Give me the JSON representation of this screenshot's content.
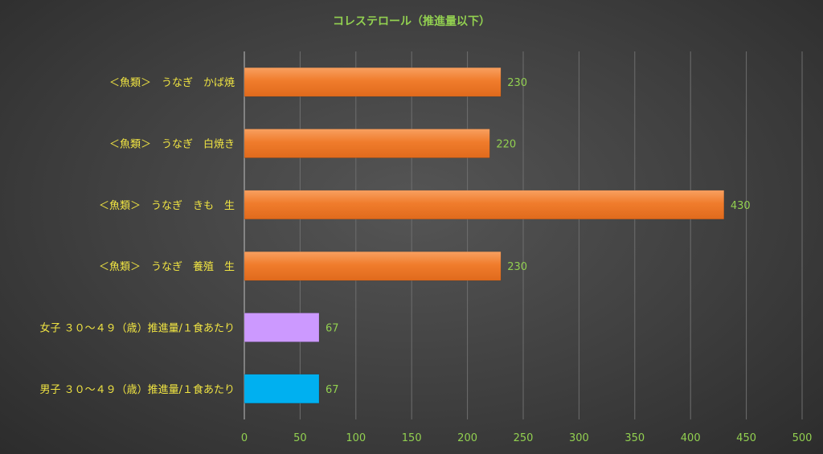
{
  "chart_data": {
    "type": "bar",
    "orientation": "horizontal",
    "title": "コレステロール（推進量以下）",
    "xlabel": "",
    "ylabel": "",
    "categories": [
      "＜魚類＞　うなぎ　かば焼",
      "＜魚類＞　うなぎ　白焼き",
      "＜魚類＞　うなぎ　きも　生",
      "＜魚類＞　うなぎ　養殖　生",
      "女子 ３０～４９（歳）推進量/１食あたり",
      "男子 ３０～４９（歳）推進量/１食あたり"
    ],
    "values": [
      230,
      220,
      430,
      230,
      67,
      67
    ],
    "bar_colors": [
      "#f07c2c",
      "#f07c2c",
      "#f07c2c",
      "#f07c2c",
      "#cc99ff",
      "#00b0f0"
    ],
    "xlim": [
      0,
      500
    ],
    "x_ticks": [
      "0",
      "50",
      "100",
      "150",
      "200",
      "250",
      "300",
      "350",
      "400",
      "450",
      "500"
    ],
    "grid": true,
    "legend": "none"
  }
}
